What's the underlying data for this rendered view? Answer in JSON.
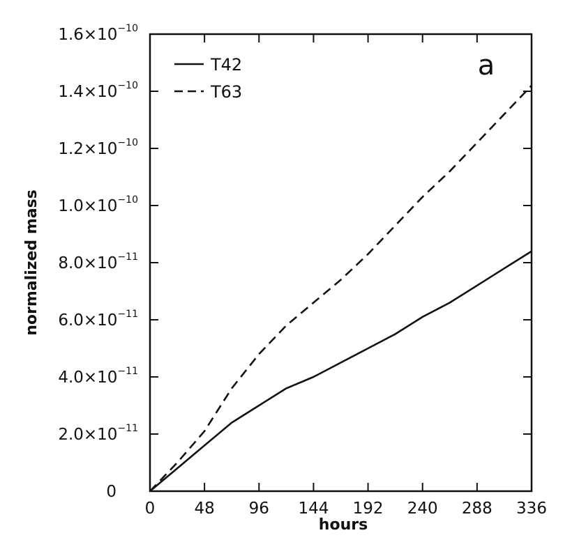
{
  "chart_data": {
    "type": "line",
    "xlabel": "hours",
    "ylabel": "normalized mass",
    "panel_label": "a",
    "xlim": [
      0,
      336
    ],
    "ylim": [
      0,
      1.6e-10
    ],
    "x_ticks": [
      {
        "value": 0,
        "label": "0"
      },
      {
        "value": 48,
        "label": "48"
      },
      {
        "value": 96,
        "label": "96"
      },
      {
        "value": 144,
        "label": "144"
      },
      {
        "value": 192,
        "label": "192"
      },
      {
        "value": 240,
        "label": "240"
      },
      {
        "value": 288,
        "label": "288"
      },
      {
        "value": 336,
        "label": "336"
      }
    ],
    "y_ticks": [
      {
        "value": 0,
        "mantissa": "0",
        "exponent": ""
      },
      {
        "value": 2e-11,
        "mantissa": "2.0×10",
        "exponent": "−11"
      },
      {
        "value": 4e-11,
        "mantissa": "4.0×10",
        "exponent": "−11"
      },
      {
        "value": 6e-11,
        "mantissa": "6.0×10",
        "exponent": "−11"
      },
      {
        "value": 8e-11,
        "mantissa": "8.0×10",
        "exponent": "−11"
      },
      {
        "value": 1e-10,
        "mantissa": "1.0×10",
        "exponent": "−10"
      },
      {
        "value": 1.2e-10,
        "mantissa": "1.2×10",
        "exponent": "−10"
      },
      {
        "value": 1.4e-10,
        "mantissa": "1.4×10",
        "exponent": "−10"
      },
      {
        "value": 1.6e-10,
        "mantissa": "1.6×10",
        "exponent": "−10"
      }
    ],
    "legend_position": "top-left",
    "grid": false,
    "series": [
      {
        "name": "T42",
        "style": "solid",
        "color": "#111111",
        "x": [
          0,
          24,
          48,
          72,
          96,
          120,
          144,
          168,
          192,
          216,
          240,
          264,
          288,
          312,
          336
        ],
        "y": [
          0,
          8e-12,
          1.6e-11,
          2.4e-11,
          3e-11,
          3.6e-11,
          4e-11,
          4.5e-11,
          5e-11,
          5.5e-11,
          6.1e-11,
          6.6e-11,
          7.2e-11,
          7.8e-11,
          8.4e-11
        ]
      },
      {
        "name": "T63",
        "style": "dashed",
        "color": "#111111",
        "x": [
          0,
          24,
          48,
          72,
          96,
          120,
          144,
          168,
          192,
          216,
          240,
          264,
          288,
          312,
          336
        ],
        "y": [
          0,
          1e-11,
          2.1e-11,
          3.6e-11,
          4.8e-11,
          5.8e-11,
          6.6e-11,
          7.4e-11,
          8.3e-11,
          9.3e-11,
          1.03e-10,
          1.12e-10,
          1.22e-10,
          1.32e-10,
          1.42e-10
        ]
      }
    ]
  }
}
